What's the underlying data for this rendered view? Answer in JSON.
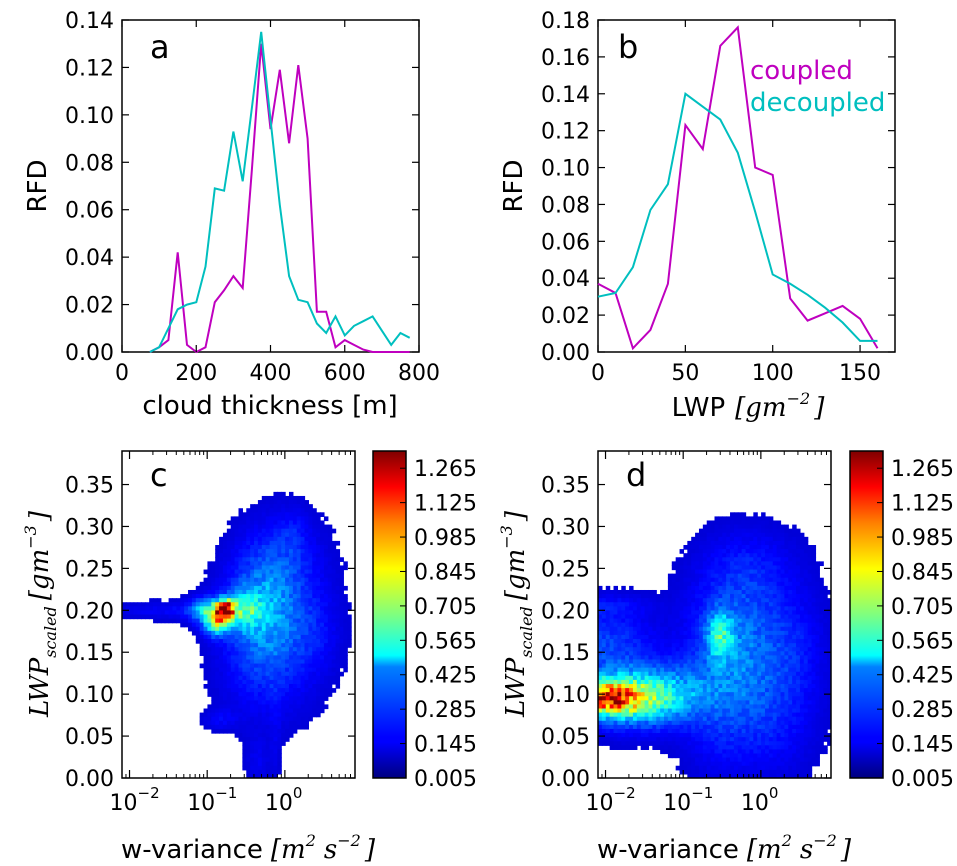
{
  "chart_data": [
    {
      "type": "line",
      "panel_label": "a",
      "xlabel": "cloud thickness [m]",
      "ylabel": "RFD",
      "xlim": [
        0,
        800
      ],
      "ylim": [
        0,
        0.14
      ],
      "xticks": [
        0,
        200,
        400,
        600,
        800
      ],
      "xtick_labels": [
        "0",
        "200",
        "400",
        "600",
        "800"
      ],
      "yticks": [
        0,
        0.02,
        0.04,
        0.06,
        0.08,
        0.1,
        0.12,
        0.14
      ],
      "ytick_labels": [
        "0.00",
        "0.02",
        "0.04",
        "0.06",
        "0.08",
        "0.10",
        "0.12",
        "0.14"
      ],
      "grid": false,
      "series": [
        {
          "key": "coupled",
          "color": "#bf00bf",
          "x": [
            75,
            100,
            125,
            150,
            175,
            200,
            225,
            250,
            275,
            300,
            325,
            350,
            375,
            400,
            425,
            450,
            475,
            500,
            525,
            550,
            575,
            600,
            625,
            650,
            675,
            700,
            725,
            750,
            775
          ],
          "y": [
            0,
            0.002,
            0.005,
            0.042,
            0.003,
            0,
            0.002,
            0.021,
            0.026,
            0.032,
            0.027,
            0.077,
            0.13,
            0.094,
            0.119,
            0.088,
            0.121,
            0.09,
            0.017,
            0.017,
            0.002,
            0.005,
            0.003,
            0.001,
            0.0,
            0,
            0,
            0,
            0
          ]
        },
        {
          "key": "decoupled",
          "color": "#00bfbf",
          "x": [
            75,
            100,
            125,
            150,
            175,
            200,
            225,
            250,
            275,
            300,
            325,
            350,
            375,
            400,
            425,
            450,
            475,
            500,
            525,
            550,
            575,
            600,
            625,
            650,
            675,
            700,
            725,
            750,
            775
          ],
          "y": [
            0,
            0.002,
            0.01,
            0.018,
            0.02,
            0.021,
            0.036,
            0.069,
            0.068,
            0.093,
            0.072,
            0.103,
            0.135,
            0.098,
            0.062,
            0.032,
            0.022,
            0.021,
            0.012,
            0.008,
            0.015,
            0.007,
            0.011,
            0.013,
            0.015,
            0.009,
            0.003,
            0.008,
            0.006
          ]
        }
      ]
    },
    {
      "type": "line",
      "panel_label": "b",
      "xlabel": "LWP [gm⁻²]",
      "xlabel_text": "LWP",
      "xlabel_math": "[gm",
      "xlabel_exp": "−2",
      "xlabel_close": "]",
      "ylabel": "RFD",
      "xlim": [
        0,
        170
      ],
      "ylim": [
        0,
        0.18
      ],
      "xticks": [
        0,
        50,
        100,
        150
      ],
      "xtick_labels": [
        "0",
        "50",
        "100",
        "150"
      ],
      "yticks": [
        0,
        0.02,
        0.04,
        0.06,
        0.08,
        0.1,
        0.12,
        0.14,
        0.16,
        0.18
      ],
      "ytick_labels": [
        "0.00",
        "0.02",
        "0.04",
        "0.06",
        "0.08",
        "0.10",
        "0.12",
        "0.14",
        "0.16",
        "0.18"
      ],
      "legend_placement": "top-right",
      "grid": false,
      "series": [
        {
          "name": "coupled",
          "color": "#bf00bf",
          "x": [
            0,
            10,
            20,
            30,
            40,
            50,
            60,
            70,
            80,
            90,
            100,
            110,
            120,
            130,
            140,
            150,
            160
          ],
          "y": [
            0.037,
            0.032,
            0.002,
            0.012,
            0.037,
            0.123,
            0.11,
            0.166,
            0.176,
            0.1,
            0.096,
            0.029,
            0.017,
            0.021,
            0.025,
            0.018,
            0.002
          ]
        },
        {
          "name": "decoupled",
          "color": "#00bfbf",
          "x": [
            0,
            10,
            20,
            30,
            40,
            50,
            60,
            70,
            80,
            90,
            100,
            110,
            120,
            130,
            140,
            150,
            160
          ],
          "y": [
            0.03,
            0.032,
            0.046,
            0.077,
            0.091,
            0.14,
            0.133,
            0.126,
            0.108,
            0.076,
            0.042,
            0.037,
            0.031,
            0.024,
            0.016,
            0.006,
            0.006
          ]
        }
      ]
    },
    {
      "type": "heatmap",
      "panel_label": "c",
      "xlabel": "w-variance [m² s⁻²]",
      "xlabel_text": "w-variance",
      "ylabel": "LWP_scaled [gm⁻³]",
      "x_scale": "log",
      "xlim": [
        0.008,
        8
      ],
      "ylim": [
        0,
        0.39
      ],
      "xtick_labels": [
        "10",
        "10",
        "10"
      ],
      "xtick_exps": [
        "−2",
        "−1",
        "0"
      ],
      "yticks": [
        0,
        0.05,
        0.1,
        0.15,
        0.2,
        0.25,
        0.3,
        0.35
      ],
      "ytick_labels": [
        "0.00",
        "0.05",
        "0.10",
        "0.15",
        "0.20",
        "0.25",
        "0.30",
        "0.35"
      ],
      "colorbar_ticks": [
        "1.265",
        "1.125",
        "0.985",
        "0.845",
        "0.705",
        "0.565",
        "0.425",
        "0.285",
        "0.145",
        "0.005"
      ],
      "colorbar_range": [
        0.005,
        1.335
      ],
      "blobs": [
        {
          "x": 0.009,
          "y": 0.2,
          "v": 0.02,
          "sx": 0.5,
          "sy": 0.005
        },
        {
          "x": 0.05,
          "y": 0.2,
          "v": 0.06,
          "sx": 0.5,
          "sy": 0.007
        },
        {
          "x": 0.1,
          "y": 0.2,
          "v": 0.35,
          "sx": 0.15,
          "sy": 0.01
        },
        {
          "x": 0.17,
          "y": 0.2,
          "v": 1.3,
          "sx": 0.08,
          "sy": 0.008
        },
        {
          "x": 0.13,
          "y": 0.185,
          "v": 0.55,
          "sx": 0.1,
          "sy": 0.01
        },
        {
          "x": 0.3,
          "y": 0.2,
          "v": 0.35,
          "sx": 0.15,
          "sy": 0.015
        },
        {
          "x": 0.5,
          "y": 0.21,
          "v": 0.2,
          "sx": 0.3,
          "sy": 0.04
        },
        {
          "x": 0.5,
          "y": 0.15,
          "v": 0.12,
          "sx": 0.35,
          "sy": 0.05
        },
        {
          "x": 1.2,
          "y": 0.2,
          "v": 0.1,
          "sx": 0.35,
          "sy": 0.06
        },
        {
          "x": 0.8,
          "y": 0.27,
          "v": 0.06,
          "sx": 0.3,
          "sy": 0.03
        },
        {
          "x": 1.3,
          "y": 0.29,
          "v": 0.05,
          "sx": 0.12,
          "sy": 0.02
        },
        {
          "x": 0.15,
          "y": 0.07,
          "v": 0.06,
          "sx": 0.15,
          "sy": 0.008
        },
        {
          "x": 0.45,
          "y": 0.02,
          "v": 0.05,
          "sx": 0.1,
          "sy": 0.02
        },
        {
          "x": 0.75,
          "y": 0.06,
          "v": 0.03,
          "sx": 0.05,
          "sy": 0.06
        },
        {
          "x": 2.5,
          "y": 0.17,
          "v": 0.04,
          "sx": 0.2,
          "sy": 0.03
        }
      ]
    },
    {
      "type": "heatmap",
      "panel_label": "d",
      "xlabel": "w-variance [m² s⁻²]",
      "xlabel_text": "w-variance",
      "ylabel": "LWP_scaled [gm⁻³]",
      "x_scale": "log",
      "xlim": [
        0.008,
        8
      ],
      "ylim": [
        0,
        0.39
      ],
      "xtick_labels": [
        "10",
        "10",
        "10"
      ],
      "xtick_exps": [
        "−2",
        "−1",
        "0"
      ],
      "yticks": [
        0,
        0.05,
        0.1,
        0.15,
        0.2,
        0.25,
        0.3,
        0.35
      ],
      "ytick_labels": [
        "0.00",
        "0.05",
        "0.10",
        "0.15",
        "0.20",
        "0.25",
        "0.30",
        "0.35"
      ],
      "colorbar_ticks": [
        "1.265",
        "1.125",
        "0.985",
        "0.845",
        "0.705",
        "0.565",
        "0.425",
        "0.285",
        "0.145",
        "0.005"
      ],
      "colorbar_range": [
        0.005,
        1.335
      ],
      "blobs": [
        {
          "x": 0.009,
          "y": 0.095,
          "v": 0.8,
          "sx": 0.25,
          "sy": 0.012
        },
        {
          "x": 0.02,
          "y": 0.095,
          "v": 0.45,
          "sx": 0.4,
          "sy": 0.018
        },
        {
          "x": 0.04,
          "y": 0.1,
          "v": 0.3,
          "sx": 0.6,
          "sy": 0.025
        },
        {
          "x": 0.01,
          "y": 0.16,
          "v": 0.15,
          "sx": 0.4,
          "sy": 0.03
        },
        {
          "x": 0.01,
          "y": 0.205,
          "v": 0.06,
          "sx": 0.4,
          "sy": 0.008
        },
        {
          "x": 0.3,
          "y": 0.17,
          "v": 0.35,
          "sx": 0.12,
          "sy": 0.02
        },
        {
          "x": 0.4,
          "y": 0.15,
          "v": 0.15,
          "sx": 0.4,
          "sy": 0.06
        },
        {
          "x": 1.0,
          "y": 0.15,
          "v": 0.12,
          "sx": 0.45,
          "sy": 0.06
        },
        {
          "x": 0.7,
          "y": 0.25,
          "v": 0.07,
          "sx": 0.4,
          "sy": 0.03
        },
        {
          "x": 0.3,
          "y": 0.04,
          "v": 0.05,
          "sx": 0.3,
          "sy": 0.03
        },
        {
          "x": 1.5,
          "y": 0.06,
          "v": 0.06,
          "sx": 0.35,
          "sy": 0.04
        },
        {
          "x": 3.0,
          "y": 0.15,
          "v": 0.04,
          "sx": 0.2,
          "sy": 0.04
        }
      ]
    }
  ],
  "legend": {
    "coupled": "coupled",
    "decoupled": "decoupled"
  }
}
